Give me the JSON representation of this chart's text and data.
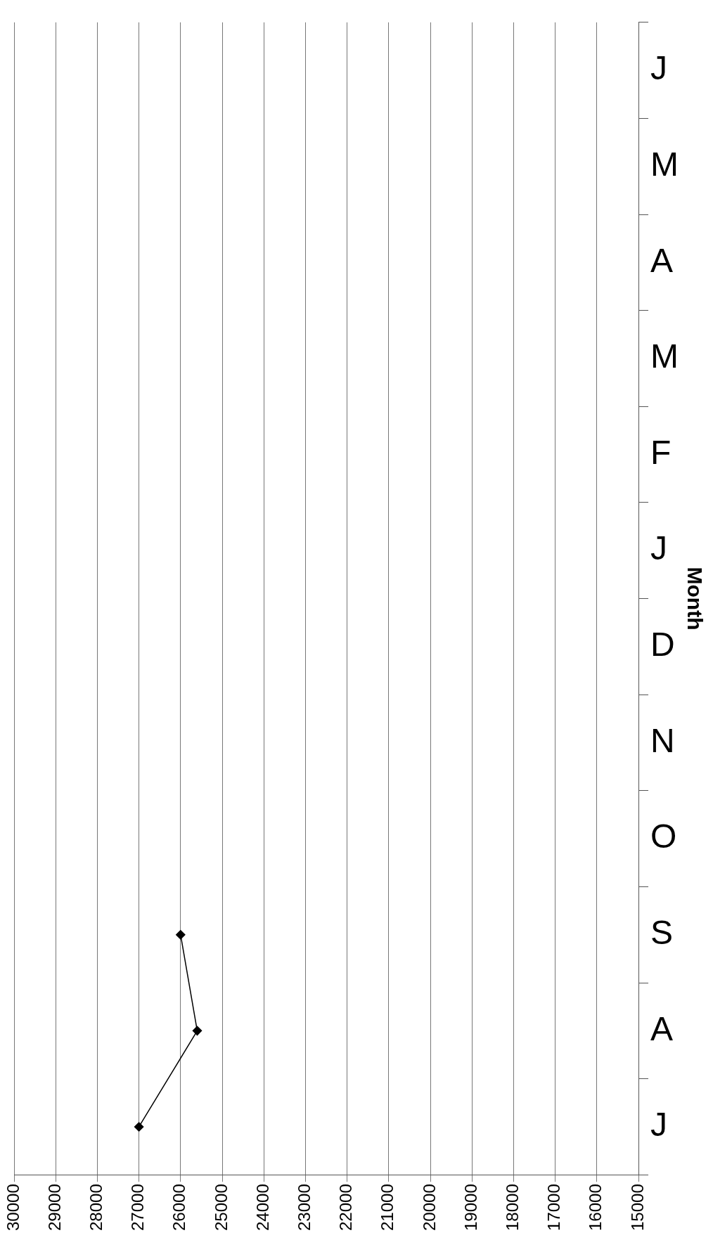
{
  "chart_data": {
    "type": "line",
    "orientation": "horizontal",
    "ylabel": "Month",
    "categories": [
      "J",
      "M",
      "A",
      "M",
      "F",
      "J",
      "D",
      "N",
      "O",
      "S",
      "A",
      "J"
    ],
    "series": [
      {
        "color": "#000000",
        "values": [
          null,
          null,
          null,
          null,
          null,
          null,
          null,
          null,
          null,
          26000,
          25600,
          27000
        ]
      }
    ],
    "xlim": [
      30000,
      15000
    ],
    "xticks": [
      30000,
      29000,
      28000,
      27000,
      26000,
      25000,
      24000,
      23000,
      22000,
      21000,
      20000,
      19000,
      18000,
      17000,
      16000,
      15000
    ],
    "grid": "x",
    "legend": false,
    "marker": "diamond",
    "line_style": "solid"
  }
}
